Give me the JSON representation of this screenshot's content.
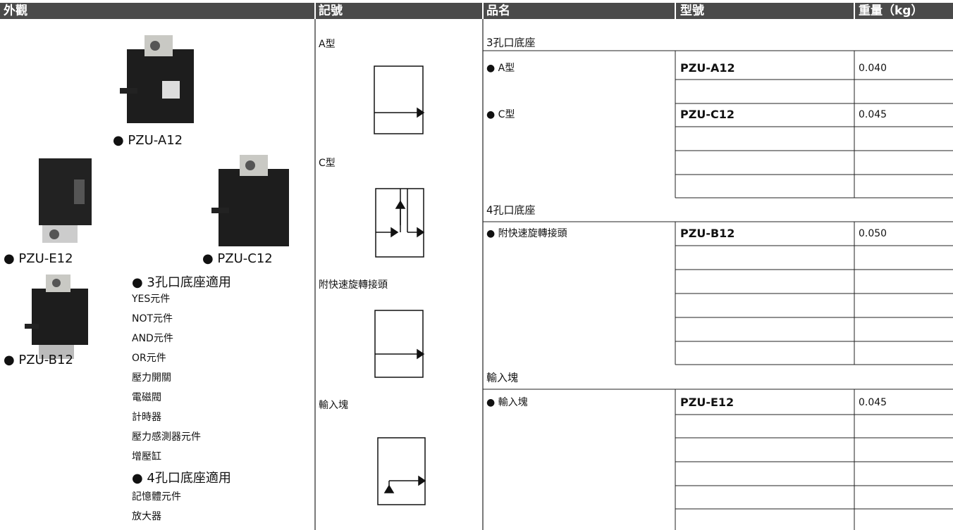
{
  "header": {
    "columns": [
      "外觀",
      "記號",
      "品名",
      "型號",
      "重量（kg）"
    ]
  },
  "appearance": {
    "products": [
      "● PZU-A12",
      "● PZU-E12",
      "● PZU-C12",
      "● PZU-B12"
    ],
    "notes": [
      "● 3孔口底座適用",
      "YES元件",
      "NOT元件",
      "AND元件",
      "OR元件",
      "壓力開關",
      "電磁閥",
      "計時器",
      "壓力感測器元件",
      "增壓缸",
      "● 4孔口底座適用",
      "記憶體元件",
      "放大器"
    ]
  },
  "symbols": [
    "A型",
    "C型",
    "附快速旋轉接頭",
    "輸入塊"
  ],
  "table": {
    "sections": [
      {
        "title": "3孔口底座",
        "rows": [
          {
            "name": "● A型",
            "model": "PZU-A12",
            "weight": "0.040"
          },
          {
            "name": "● C型",
            "model": "PZU-C12",
            "weight": "0.045"
          }
        ]
      },
      {
        "title": "4孔口底座",
        "rows": [
          {
            "name": "● 附快速旋轉接頭",
            "model": "PZU-B12",
            "weight": "0.050"
          }
        ]
      },
      {
        "title": "輸入塊",
        "rows": [
          {
            "name": "● 輸入塊",
            "model": "PZU-E12",
            "weight": "0.045"
          }
        ]
      }
    ]
  }
}
